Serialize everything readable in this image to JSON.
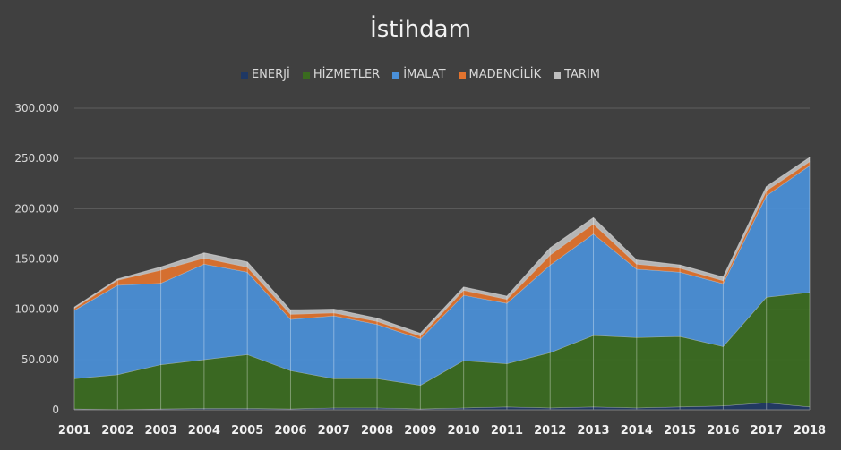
{
  "chart_data": {
    "type": "area",
    "stacked": true,
    "title": "İstihdam",
    "categories": [
      "2001",
      "2002",
      "2003",
      "2004",
      "2005",
      "2006",
      "2007",
      "2008",
      "2009",
      "2010",
      "2011",
      "2012",
      "2013",
      "2014",
      "2015",
      "2016",
      "2017",
      "2018"
    ],
    "series": [
      {
        "name": "ENERJİ",
        "color": "#1f3864",
        "values": [
          1000,
          500,
          1000,
          1500,
          1500,
          1000,
          2000,
          2000,
          1000,
          2000,
          3000,
          2000,
          3000,
          2000,
          3000,
          4000,
          7000,
          3000
        ]
      },
      {
        "name": "HİZMETLER",
        "color": "#3a6b1f",
        "values": [
          30000,
          34500,
          44000,
          48500,
          53500,
          38000,
          29000,
          29000,
          23500,
          47000,
          43000,
          55000,
          71000,
          70000,
          70000,
          59000,
          105000,
          114000
        ]
      },
      {
        "name": "İMALAT",
        "color": "#4a90d9",
        "values": [
          68000,
          89000,
          81000,
          95000,
          82000,
          51000,
          62500,
          54000,
          46000,
          65000,
          60000,
          87000,
          101000,
          68000,
          64000,
          62500,
          101000,
          126000
        ]
      },
      {
        "name": "MADENCİLİK",
        "color": "#e2732e",
        "values": [
          2000,
          5000,
          13000,
          6000,
          5000,
          5000,
          3000,
          3000,
          3000,
          5000,
          4000,
          10000,
          10000,
          5000,
          4000,
          3000,
          5000,
          4000
        ]
      },
      {
        "name": "TARIM",
        "color": "#bfbfbf",
        "values": [
          1000,
          1000,
          3000,
          5000,
          5000,
          4000,
          3500,
          3000,
          2500,
          3000,
          3000,
          7000,
          6000,
          4000,
          3000,
          3500,
          4000,
          4000
        ]
      }
    ],
    "ylim": [
      0,
      300000
    ],
    "yticks": [
      "0",
      "50.000",
      "100.000",
      "150.000",
      "200.000",
      "250.000",
      "300.000"
    ],
    "ytick_values": [
      0,
      50000,
      100000,
      150000,
      200000,
      250000,
      300000
    ],
    "grid": true,
    "legend_position": "top"
  }
}
